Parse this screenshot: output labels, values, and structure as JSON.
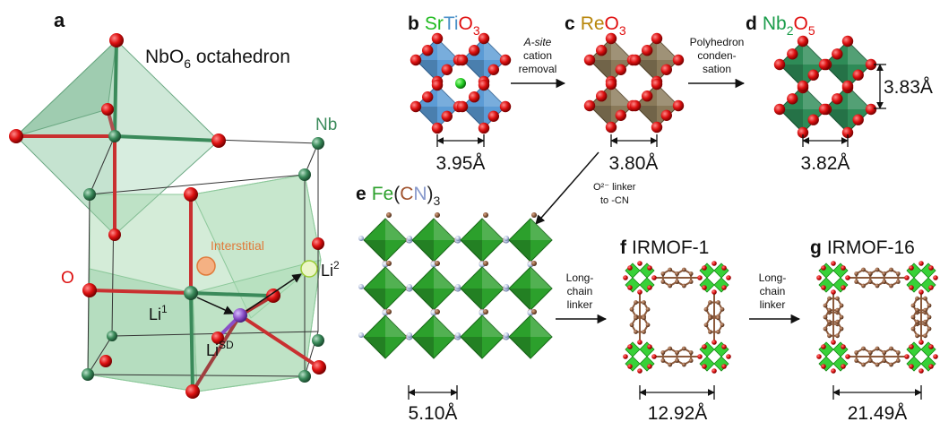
{
  "panels": {
    "a": {
      "letter": "a",
      "octahedron_label": "NbO",
      "octahedron_sub": "6",
      "octahedron_tail": " octahedron",
      "nb_label": "Nb",
      "o_label": "O",
      "interstitial_label": "Interstitial",
      "li1_base": "Li",
      "li1_sup": "1",
      "li2_base": "Li",
      "li2_sup": "2",
      "lisd_base": "Li",
      "lisd_sup": "SD"
    },
    "b": {
      "letter": "b",
      "formula": [
        {
          "text": "Sr",
          "color": "#22bb22"
        },
        {
          "text": "Ti",
          "color": "#4a90c8"
        },
        {
          "text": "O",
          "color": "#e01010"
        },
        {
          "text": "3",
          "color": "#e01010",
          "sub": true
        }
      ],
      "dimension": "3.95Å"
    },
    "c": {
      "letter": "c",
      "formula": [
        {
          "text": "Re",
          "color": "#b8860b"
        },
        {
          "text": "O",
          "color": "#e01010"
        },
        {
          "text": "3",
          "color": "#e01010",
          "sub": true
        }
      ],
      "dimension": "3.80Å"
    },
    "d": {
      "letter": "d",
      "formula": [
        {
          "text": "Nb",
          "color": "#1a9c4a"
        },
        {
          "text": "2",
          "color": "#1a9c4a",
          "sub": true
        },
        {
          "text": "O",
          "color": "#e01010"
        },
        {
          "text": "5",
          "color": "#e01010",
          "sub": true
        }
      ],
      "dimension": "3.82Å",
      "vertical_dimension": "3.83Å"
    },
    "e": {
      "letter": "e",
      "formula": [
        {
          "text": "Fe",
          "color": "#2ca02c"
        },
        {
          "text": "(",
          "color": "#222222"
        },
        {
          "text": "C",
          "color": "#a0522d"
        },
        {
          "text": "N",
          "color": "#8899cc"
        },
        {
          "text": ")",
          "color": "#222222"
        },
        {
          "text": "3",
          "color": "#222222",
          "sub": true
        }
      ],
      "dimension": "5.10Å"
    },
    "f": {
      "letter": "f",
      "name": "IRMOF-1",
      "dimension": "12.92Å"
    },
    "g": {
      "letter": "g",
      "name": "IRMOF-16",
      "dimension": "21.49Å"
    }
  },
  "arrows": {
    "b_to_c": [
      "A-site",
      "cation",
      "removal"
    ],
    "c_to_d": [
      "Polyhedron",
      "conden-",
      "sation"
    ],
    "c_to_e": [
      "O²⁻ linker",
      "to -CN"
    ],
    "e_to_f": [
      "Long-",
      "chain",
      "linker"
    ],
    "f_to_g": [
      "Long-",
      "chain",
      "linker"
    ]
  },
  "colors": {
    "oxygen": "#dd1111",
    "niobium": "#3a8a5a",
    "titanium_octahedron": "#5b9bd5",
    "rhenium_octahedron": "#8a7a5a",
    "niobium_octahedron": "#2e8b57",
    "mof_cluster": "#22cc22",
    "carbon": "#8b5a3c",
    "nitrogen": "#b8c4e0",
    "lithium_sd": "#8a4fc8",
    "interstitial": "#f4b183",
    "li2": "#e8f5c0"
  }
}
